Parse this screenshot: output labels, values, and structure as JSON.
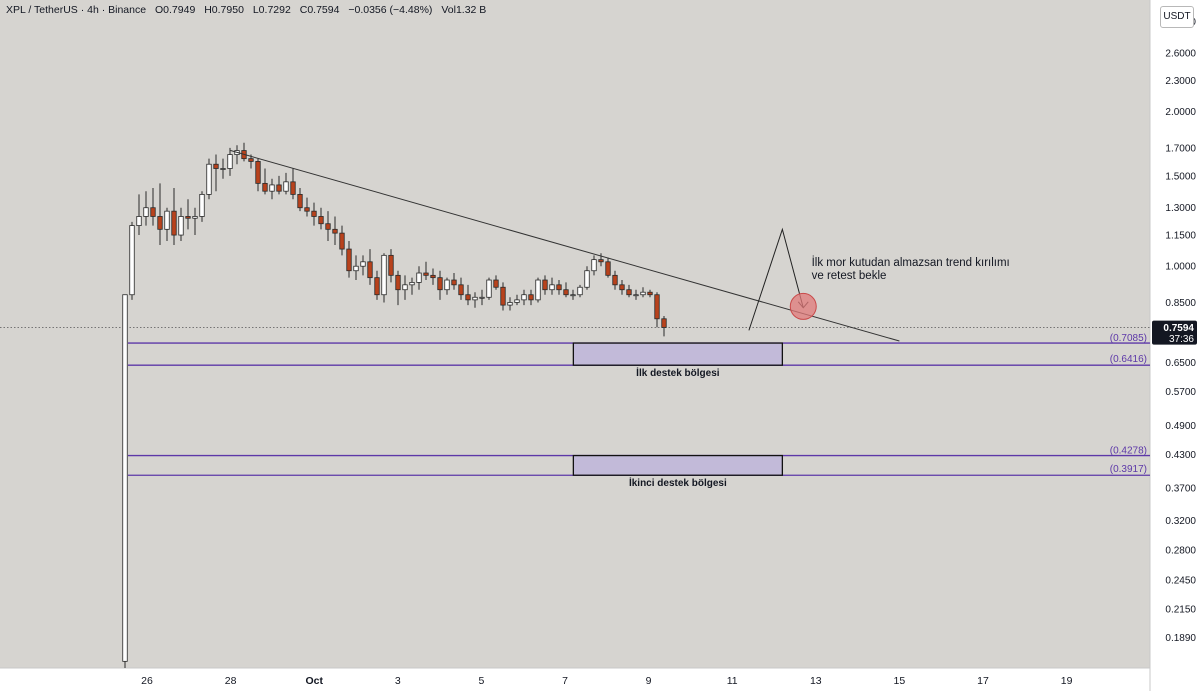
{
  "header": {
    "symbol": "XPL / TetherUS · 4h · Binance",
    "open": "O0.7949",
    "high": "H0.7950",
    "low": "L0.7292",
    "close": "C0.7594",
    "change": "−0.0356 (−4.48%)",
    "volume": "Vol1.32 B",
    "currency_button": "USDT"
  },
  "colors": {
    "background": "#d6d4d0",
    "up_candle": "#ffffff",
    "down_candle": "#b8421c",
    "wick": "#2a2a2a",
    "zone_line": "#5d38a8",
    "zone_fill": "#c2bad9",
    "trendline": "#333333",
    "marker": "#e07a7a",
    "price_tag": "#131722"
  },
  "chart_data": {
    "type": "candlestick",
    "y_scale": "log",
    "ylim": [
      0.165,
      3.3
    ],
    "y_ticks": [
      "3.0000",
      "2.6000",
      "2.3000",
      "2.0000",
      "1.7000",
      "1.5000",
      "1.3000",
      "1.1500",
      "1.0000",
      "0.8500",
      "0.6500",
      "0.5700",
      "0.4900",
      "0.4300",
      "0.3700",
      "0.3200",
      "0.2800",
      "0.2450",
      "0.2150",
      "0.1890"
    ],
    "x_ticks": [
      {
        "label": "26",
        "day": 26
      },
      {
        "label": "28",
        "day": 28
      },
      {
        "label": "Oct",
        "day": 30
      },
      {
        "label": "3",
        "day": 32
      },
      {
        "label": "5",
        "day": 34
      },
      {
        "label": "7",
        "day": 36
      },
      {
        "label": "9",
        "day": 38
      },
      {
        "label": "11",
        "day": 40
      },
      {
        "label": "13",
        "day": 42
      },
      {
        "label": "15",
        "day": 44
      },
      {
        "label": "17",
        "day": 46
      },
      {
        "label": "19",
        "day": 48
      }
    ],
    "candles_start": "Sep 25",
    "candle_interval": "4h",
    "candles": [
      [
        0.17,
        0.88,
        0.165,
        0.88
      ],
      [
        0.88,
        1.22,
        0.86,
        1.2
      ],
      [
        1.2,
        1.38,
        1.15,
        1.25
      ],
      [
        1.25,
        1.4,
        1.2,
        1.3
      ],
      [
        1.3,
        1.42,
        1.2,
        1.25
      ],
      [
        1.25,
        1.45,
        1.1,
        1.18
      ],
      [
        1.18,
        1.3,
        1.12,
        1.28
      ],
      [
        1.28,
        1.42,
        1.1,
        1.15
      ],
      [
        1.15,
        1.3,
        1.12,
        1.25
      ],
      [
        1.25,
        1.35,
        1.18,
        1.24
      ],
      [
        1.24,
        1.3,
        1.15,
        1.25
      ],
      [
        1.25,
        1.4,
        1.22,
        1.38
      ],
      [
        1.38,
        1.62,
        1.35,
        1.58
      ],
      [
        1.58,
        1.65,
        1.4,
        1.55
      ],
      [
        1.55,
        1.62,
        1.48,
        1.55
      ],
      [
        1.55,
        1.7,
        1.5,
        1.65
      ],
      [
        1.65,
        1.72,
        1.58,
        1.68
      ],
      [
        1.68,
        1.74,
        1.6,
        1.62
      ],
      [
        1.62,
        1.65,
        1.55,
        1.6
      ],
      [
        1.6,
        1.62,
        1.4,
        1.45
      ],
      [
        1.45,
        1.55,
        1.38,
        1.4
      ],
      [
        1.4,
        1.48,
        1.35,
        1.44
      ],
      [
        1.44,
        1.5,
        1.38,
        1.4
      ],
      [
        1.4,
        1.52,
        1.38,
        1.46
      ],
      [
        1.46,
        1.55,
        1.35,
        1.38
      ],
      [
        1.38,
        1.42,
        1.28,
        1.3
      ],
      [
        1.3,
        1.36,
        1.25,
        1.28
      ],
      [
        1.28,
        1.33,
        1.2,
        1.25
      ],
      [
        1.25,
        1.3,
        1.18,
        1.21
      ],
      [
        1.21,
        1.28,
        1.12,
        1.18
      ],
      [
        1.18,
        1.25,
        1.1,
        1.16
      ],
      [
        1.16,
        1.2,
        1.05,
        1.08
      ],
      [
        1.08,
        1.12,
        0.95,
        0.98
      ],
      [
        0.98,
        1.05,
        0.94,
        1.0
      ],
      [
        1.0,
        1.05,
        0.96,
        1.02
      ],
      [
        1.02,
        1.08,
        0.92,
        0.95
      ],
      [
        0.95,
        0.98,
        0.86,
        0.88
      ],
      [
        0.88,
        1.06,
        0.85,
        1.05
      ],
      [
        1.05,
        1.08,
        0.93,
        0.96
      ],
      [
        0.96,
        0.98,
        0.84,
        0.9
      ],
      [
        0.9,
        0.96,
        0.86,
        0.92
      ],
      [
        0.92,
        0.95,
        0.88,
        0.93
      ],
      [
        0.93,
        1.0,
        0.9,
        0.97
      ],
      [
        0.97,
        1.02,
        0.94,
        0.96
      ],
      [
        0.96,
        0.99,
        0.92,
        0.95
      ],
      [
        0.95,
        0.98,
        0.86,
        0.9
      ],
      [
        0.9,
        0.95,
        0.88,
        0.94
      ],
      [
        0.94,
        0.97,
        0.9,
        0.92
      ],
      [
        0.92,
        0.95,
        0.86,
        0.88
      ],
      [
        0.88,
        0.92,
        0.84,
        0.86
      ],
      [
        0.86,
        0.89,
        0.83,
        0.87
      ],
      [
        0.87,
        0.9,
        0.84,
        0.87
      ],
      [
        0.87,
        0.95,
        0.86,
        0.94
      ],
      [
        0.94,
        0.96,
        0.9,
        0.91
      ],
      [
        0.91,
        0.93,
        0.82,
        0.84
      ],
      [
        0.84,
        0.87,
        0.82,
        0.85
      ],
      [
        0.85,
        0.88,
        0.84,
        0.86
      ],
      [
        0.86,
        0.9,
        0.84,
        0.88
      ],
      [
        0.88,
        0.9,
        0.84,
        0.86
      ],
      [
        0.86,
        0.95,
        0.85,
        0.94
      ],
      [
        0.94,
        0.96,
        0.88,
        0.9
      ],
      [
        0.9,
        0.95,
        0.88,
        0.92
      ],
      [
        0.92,
        0.94,
        0.88,
        0.9
      ],
      [
        0.9,
        0.93,
        0.87,
        0.88
      ],
      [
        0.88,
        0.9,
        0.86,
        0.88
      ],
      [
        0.88,
        0.92,
        0.87,
        0.91
      ],
      [
        0.91,
        1.0,
        0.9,
        0.98
      ],
      [
        0.98,
        1.05,
        0.96,
        1.03
      ],
      [
        1.03,
        1.06,
        1.0,
        1.02
      ],
      [
        1.02,
        1.04,
        0.95,
        0.96
      ],
      [
        0.96,
        0.98,
        0.9,
        0.92
      ],
      [
        0.92,
        0.94,
        0.88,
        0.9
      ],
      [
        0.9,
        0.92,
        0.87,
        0.88
      ],
      [
        0.88,
        0.9,
        0.86,
        0.88
      ],
      [
        0.88,
        0.91,
        0.87,
        0.89
      ],
      [
        0.89,
        0.9,
        0.87,
        0.88
      ],
      [
        0.88,
        0.89,
        0.76,
        0.79
      ],
      [
        0.79,
        0.8,
        0.73,
        0.76
      ]
    ],
    "trendline": {
      "start": {
        "day": 28.0,
        "price": 1.68
      },
      "end": {
        "day": 44.0,
        "price": 0.715
      }
    },
    "arrow_path": [
      {
        "day": 40.4,
        "price": 0.75
      },
      {
        "day": 41.2,
        "price": 1.18
      },
      {
        "day": 41.7,
        "price": 0.83
      }
    ],
    "marker": {
      "day": 41.7,
      "price": 0.835
    },
    "current_price": {
      "value": "0.7594",
      "countdown": "37:36"
    },
    "zones": [
      {
        "name": "İlk destek bölgesi",
        "top": 0.7085,
        "bottom": 0.6416,
        "top_label": "(0.7085)",
        "bottom_label": "(0.6416)",
        "box_start_day": 36.2,
        "box_end_day": 41.2
      },
      {
        "name": "İkinci destek bölgesi",
        "top": 0.4278,
        "bottom": 0.3917,
        "top_label": "(0.4278)",
        "bottom_label": "(0.3917)",
        "box_start_day": 36.2,
        "box_end_day": 41.2
      }
    ],
    "annotation": {
      "line1": "İlk mor kutudan almazsan trend kırılımı",
      "line2": "ve retest bekle",
      "day": 41.9,
      "price": 1.0
    }
  }
}
